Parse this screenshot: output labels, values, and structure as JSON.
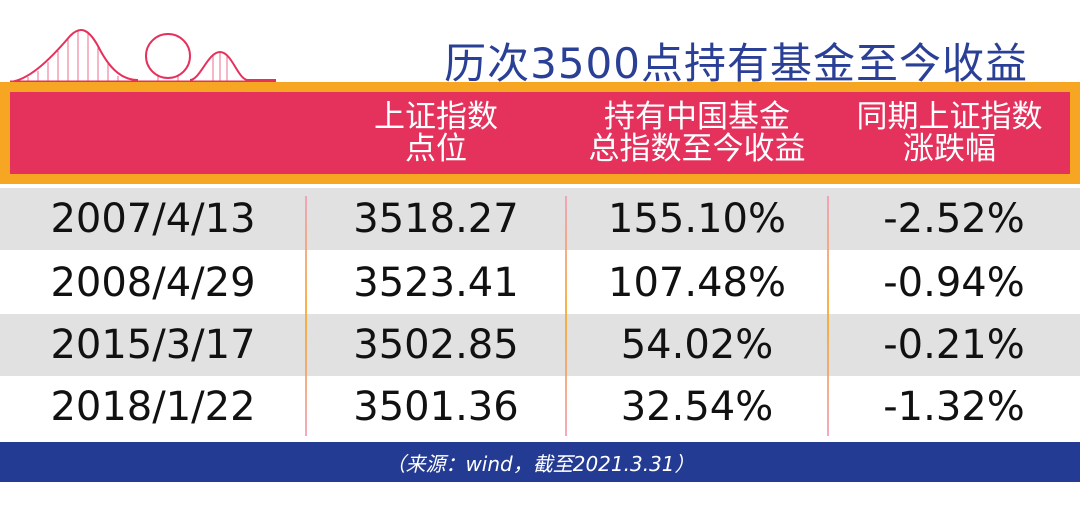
{
  "title": "历次3500点持有基金至今收益",
  "columns": [
    {
      "line1": "",
      "line2": ""
    },
    {
      "line1": "上证指数",
      "line2": "点位"
    },
    {
      "line1": "持有中国基金",
      "line2": "总指数至今收益"
    },
    {
      "line1": "同期上证指数",
      "line2": "涨跌幅"
    }
  ],
  "rows": [
    {
      "date": "2007/4/13",
      "index": "3518.27",
      "fund_return": "155.10%",
      "index_change": "-2.52%"
    },
    {
      "date": "2008/4/29",
      "index": "3523.41",
      "fund_return": "107.48%",
      "index_change": "-0.94%"
    },
    {
      "date": "2015/3/17",
      "index": "3502.85",
      "fund_return": "54.02%",
      "index_change": "-0.21%"
    },
    {
      "date": "2018/1/22",
      "index": "3501.36",
      "fund_return": "32.54%",
      "index_change": "-1.32%"
    }
  ],
  "footer": "（来源：wind，截至2021.3.31）",
  "colors": {
    "title": "#2a3f96",
    "header_bg": "#e5325d",
    "header_frame": "#f6a623",
    "row_shade": "#e1e1e1",
    "footer_bg": "#243b93"
  },
  "decoration_icon": "roller-coaster-icon"
}
